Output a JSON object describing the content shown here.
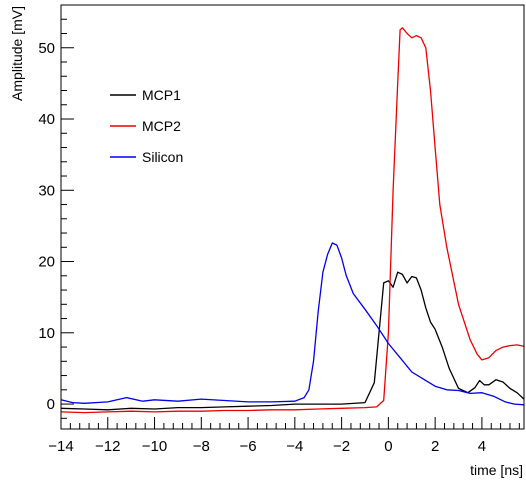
{
  "chart_data": {
    "type": "line",
    "title": "",
    "xlabel": "time [ns]",
    "ylabel": "Amplitude [mV]",
    "xlim": [
      -14,
      5.8
    ],
    "ylim": [
      -3.5,
      56
    ],
    "x_ticks": [
      {
        "value": -14,
        "label": "−14"
      },
      {
        "value": -12,
        "label": "−12"
      },
      {
        "value": -10,
        "label": "−10"
      },
      {
        "value": -8,
        "label": "−8"
      },
      {
        "value": -6,
        "label": "−6"
      },
      {
        "value": -4,
        "label": "−4"
      },
      {
        "value": -2,
        "label": "−2"
      },
      {
        "value": 0,
        "label": "0"
      },
      {
        "value": 2,
        "label": "2"
      },
      {
        "value": 4,
        "label": "4"
      }
    ],
    "y_ticks": [
      {
        "value": 0,
        "label": "0"
      },
      {
        "value": 10,
        "label": "10"
      },
      {
        "value": 20,
        "label": "20"
      },
      {
        "value": 30,
        "label": "30"
      },
      {
        "value": 40,
        "label": "40"
      },
      {
        "value": 50,
        "label": "50"
      }
    ],
    "grid": false,
    "legend_position": "top-left",
    "series": [
      {
        "name": "MCP1",
        "color": "#000000",
        "x": [
          -14,
          -13,
          -12,
          -11,
          -10,
          -9,
          -8,
          -7,
          -6,
          -5,
          -4,
          -3,
          -2,
          -1,
          -0.6,
          -0.4,
          -0.2,
          0,
          0.2,
          0.4,
          0.6,
          0.8,
          1.0,
          1.2,
          1.4,
          1.6,
          1.8,
          2.0,
          2.3,
          2.6,
          3.0,
          3.4,
          3.7,
          3.9,
          4.1,
          4.3,
          4.6,
          4.9,
          5.2,
          5.5,
          5.8
        ],
        "y": [
          -0.6,
          -0.7,
          -0.8,
          -0.6,
          -0.7,
          -0.5,
          -0.5,
          -0.4,
          -0.3,
          -0.2,
          0,
          0,
          0,
          0.2,
          3,
          10,
          17,
          17.3,
          16.4,
          18.5,
          18.2,
          17,
          17.9,
          17.7,
          16,
          13.5,
          11.5,
          10.5,
          8,
          5,
          2.2,
          1.6,
          2.3,
          3.3,
          2.7,
          2.7,
          3.4,
          3.1,
          2.2,
          1.6,
          0.7
        ]
      },
      {
        "name": "MCP2",
        "color": "#ee0000",
        "x": [
          -14,
          -13,
          -12,
          -11,
          -10,
          -9,
          -8,
          -7,
          -6,
          -5,
          -4,
          -3,
          -2,
          -1,
          -0.5,
          -0.2,
          0,
          0.2,
          0.4,
          0.5,
          0.6,
          0.8,
          1.0,
          1.2,
          1.4,
          1.6,
          1.8,
          2.0,
          2.2,
          2.5,
          3.0,
          3.5,
          3.8,
          4.0,
          4.3,
          4.6,
          4.9,
          5.2,
          5.5,
          5.8
        ],
        "y": [
          -1.1,
          -1.2,
          -1.1,
          -1.0,
          -1.1,
          -1.0,
          -1.0,
          -0.9,
          -0.9,
          -0.8,
          -0.8,
          -0.7,
          -0.6,
          -0.5,
          -0.4,
          0.5,
          10,
          30,
          45,
          52.5,
          52.8,
          52,
          51.4,
          51.7,
          51.4,
          50,
          44,
          36,
          28,
          22,
          14,
          9,
          7,
          6.2,
          6.5,
          7.5,
          8,
          8.2,
          8.3,
          8.1
        ]
      },
      {
        "name": "Silicon",
        "color": "#0000ee",
        "x": [
          -14,
          -13.5,
          -13,
          -12,
          -11.2,
          -10.5,
          -10,
          -9,
          -8,
          -7,
          -6,
          -5,
          -4,
          -3.6,
          -3.4,
          -3.2,
          -3.0,
          -2.8,
          -2.6,
          -2.4,
          -2.2,
          -2.0,
          -1.8,
          -1.5,
          -1.0,
          -0.5,
          0,
          0.5,
          1.0,
          1.5,
          2.0,
          2.5,
          3.0,
          3.5,
          4.0,
          4.5,
          5.0,
          5.4,
          5.8
        ],
        "y": [
          0.6,
          0.2,
          0.1,
          0.3,
          0.9,
          0.4,
          0.6,
          0.4,
          0.7,
          0.5,
          0.3,
          0.3,
          0.4,
          0.9,
          2,
          6,
          13,
          18.5,
          21,
          22.6,
          22.3,
          20.5,
          18,
          15.5,
          13.3,
          11,
          8.5,
          6.5,
          4.5,
          3.5,
          2.5,
          2,
          1.9,
          1.5,
          1.6,
          1.1,
          0.3,
          0,
          -0.1
        ]
      }
    ]
  }
}
